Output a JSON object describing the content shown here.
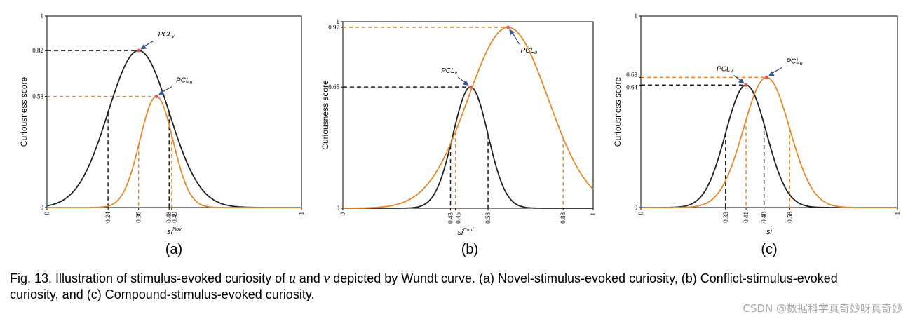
{
  "figure": {
    "caption_prefix": "Fig. 13. Illustration of stimulus-evoked curiosity of",
    "caption_var_u": "u",
    "caption_and": "and",
    "caption_var_v": "v",
    "caption_rest_line1": "depicted by Wundt curve. (a) Novel-stimulus-evoked curiosity, (b) Conflict-stimulus-evoked",
    "caption_line2": "curiosity, and (c) Compound-stimulus-evoked curiosity.",
    "watermark": "CSDN @数据科学真奇妙呀真奇妙"
  },
  "colors": {
    "v_curve": "#222222",
    "u_curve": "#e8872c",
    "peak_marker": "#d9534f",
    "axis": "#000000"
  },
  "chart_data": [
    {
      "type": "line",
      "panel_label": "(a)",
      "ylabel": "Curiousness score",
      "xlabel_base": "si",
      "xlabel_sup": "Nov",
      "xlim": [
        0,
        1
      ],
      "ylim": [
        0,
        1
      ],
      "x_ticks": [
        "0",
        "0.24",
        "0.36",
        "0.48",
        "0.49",
        "1"
      ],
      "y_ticks": [
        "0",
        "0.58",
        "0.82",
        "1"
      ],
      "series": [
        {
          "name": "PCL_v",
          "curve": "v",
          "peak_x": 0.36,
          "peak_y": 0.82,
          "sigma": 0.12,
          "drop_x": [
            0.24,
            0.48
          ]
        },
        {
          "name": "PCL_u",
          "curve": "u",
          "peak_x": 0.43,
          "peak_y": 0.58,
          "sigma": 0.065,
          "drop_x": [
            0.36,
            0.49
          ]
        }
      ],
      "annotations": [
        {
          "target": "PCL_v",
          "text_base": "PCL",
          "text_sub": "v",
          "side": "upper-right"
        },
        {
          "target": "PCL_u",
          "text_base": "PCL",
          "text_sub": "u",
          "side": "upper-right"
        }
      ]
    },
    {
      "type": "line",
      "panel_label": "(b)",
      "ylabel": "Curiousness score",
      "xlabel_base": "si",
      "xlabel_sup": "Conf",
      "xlim": [
        0,
        1
      ],
      "ylim": [
        0,
        1
      ],
      "x_ticks": [
        "0",
        "0.43",
        "0.45",
        "0.58",
        "0.88",
        "1"
      ],
      "y_ticks": [
        "0",
        "0.65",
        "0.97",
        "1"
      ],
      "series": [
        {
          "name": "PCL_v",
          "curve": "v",
          "peak_x": 0.51,
          "peak_y": 0.65,
          "sigma": 0.07,
          "drop_x": [
            0.43,
            0.58
          ]
        },
        {
          "name": "PCL_u",
          "curve": "u",
          "peak_x": 0.66,
          "peak_y": 0.97,
          "sigma": 0.16,
          "drop_x": [
            0.45,
            0.88
          ]
        }
      ],
      "annotations": [
        {
          "target": "PCL_v",
          "text_base": "PCL",
          "text_sub": "v",
          "side": "upper-left"
        },
        {
          "target": "PCL_u",
          "text_base": "PCL",
          "text_sub": "u",
          "side": "lower-right"
        }
      ]
    },
    {
      "type": "line",
      "panel_label": "(c)",
      "ylabel": "Curiousness score",
      "xlabel_base": "si",
      "xlabel_sup": "",
      "xlim": [
        0,
        1
      ],
      "ylim": [
        0,
        1
      ],
      "x_ticks": [
        "0",
        "0.33",
        "0.41",
        "0.48",
        "0.58",
        "1"
      ],
      "y_ticks": [
        "0",
        "0.64",
        "0.68",
        "1"
      ],
      "series": [
        {
          "name": "PCL_v",
          "curve": "v",
          "peak_x": 0.41,
          "peak_y": 0.64,
          "sigma": 0.08,
          "drop_x": [
            0.33,
            0.48
          ]
        },
        {
          "name": "PCL_u",
          "curve": "u",
          "peak_x": 0.49,
          "peak_y": 0.68,
          "sigma": 0.09,
          "drop_x": [
            0.41,
            0.58
          ]
        }
      ],
      "annotations": [
        {
          "target": "PCL_v",
          "text_base": "PCL",
          "text_sub": "v",
          "side": "upper-left"
        },
        {
          "target": "PCL_u",
          "text_base": "PCL",
          "text_sub": "u",
          "side": "upper-right"
        }
      ]
    }
  ]
}
